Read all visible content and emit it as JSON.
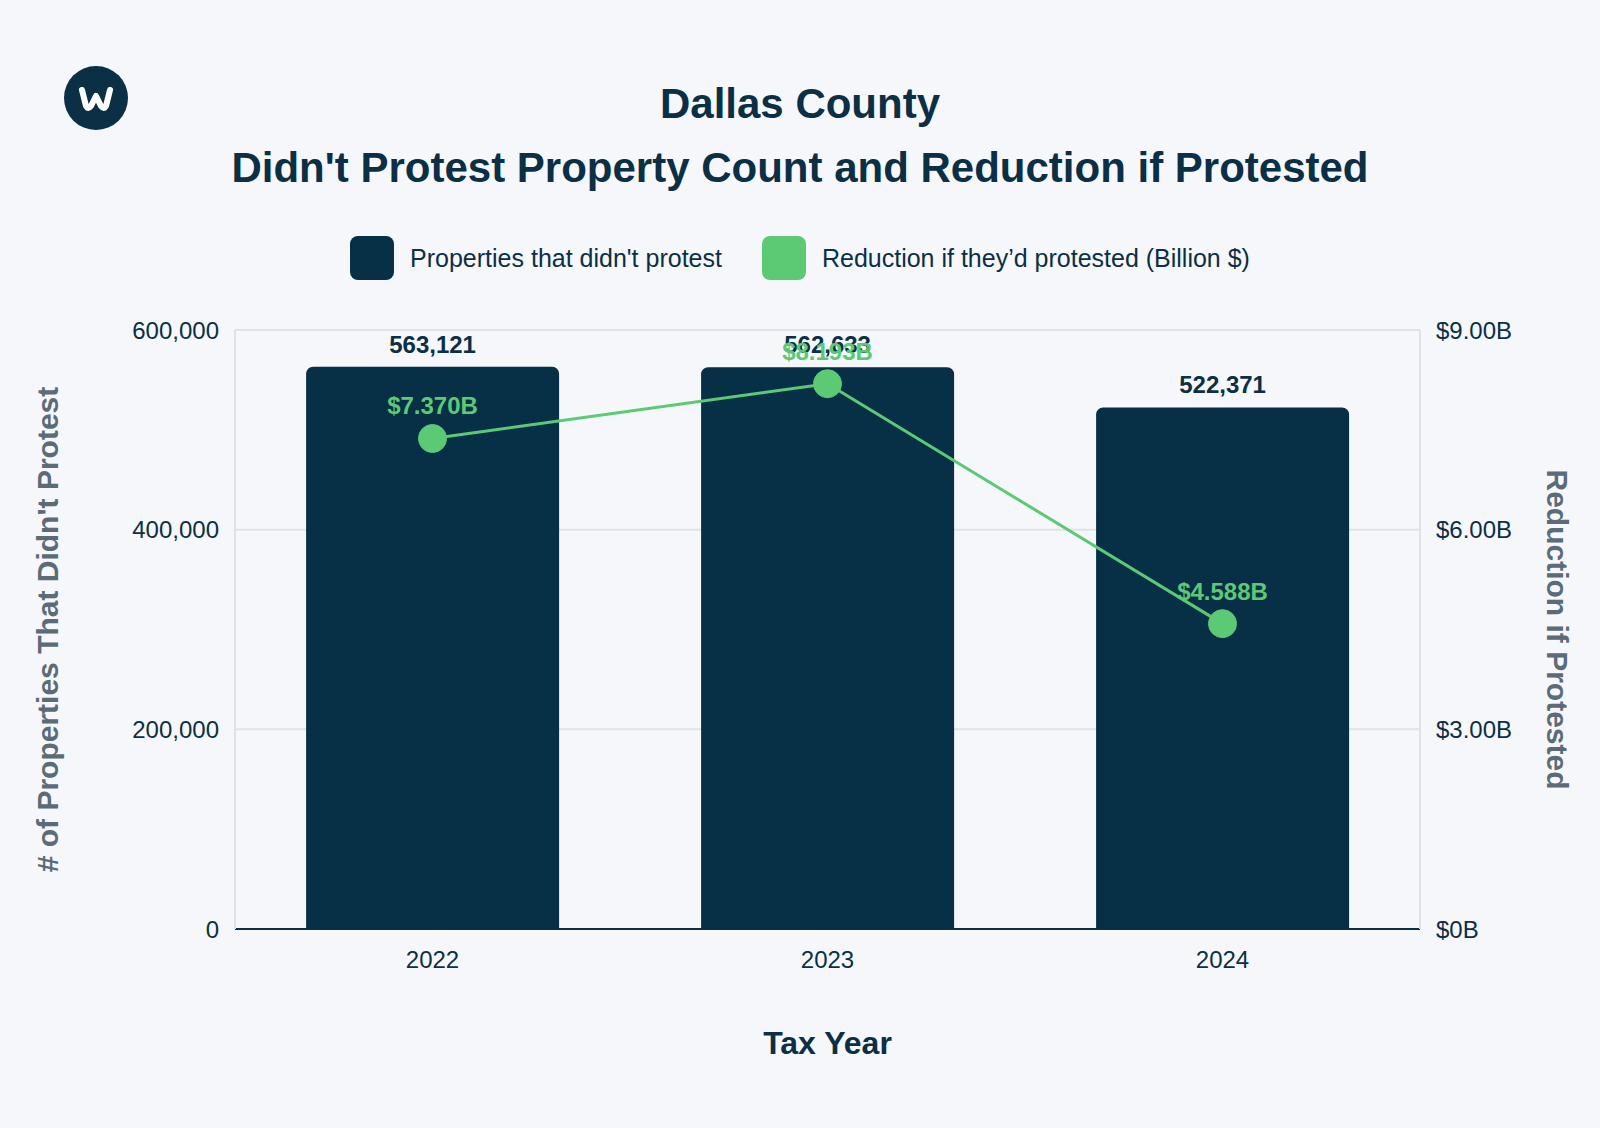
{
  "chart_data": {
    "type": "bar",
    "title": "Dallas County",
    "subtitle": "Didn't Protest Property Count and Reduction if Protested",
    "x_label": "Tax Year",
    "y_label": "# of Properties That Didn't Protest",
    "y2_label": "Reduction if Protested",
    "categories": [
      "2022",
      "2023",
      "2024"
    ],
    "series": [
      {
        "name": "Properties that didn't protest",
        "type": "bar",
        "color": "#072f46",
        "values": [
          563121,
          562633,
          522371
        ],
        "value_labels": [
          "563,121",
          "562,633",
          "522,371"
        ]
      },
      {
        "name": "Reduction if they’d protested (Billion $)",
        "type": "line",
        "axis": "y2",
        "color": "#5cc975",
        "marker": "circle",
        "values": [
          7.37,
          8.193,
          4.588
        ],
        "value_labels": [
          "$7.370B",
          "$8.193B",
          "$4.588B"
        ]
      }
    ],
    "ylim": [
      0,
      600000
    ],
    "yticks": [
      0,
      {
        "value": 200000,
        "label": "200,000"
      },
      {
        "value": 400000,
        "label": "400,000"
      },
      {
        "value": 600000,
        "label": "600,000"
      }
    ],
    "y2lim": [
      0,
      9
    ],
    "y2ticks": [
      {
        "value": 0,
        "label": "$0B"
      },
      {
        "value": 3,
        "label": "$3.00B"
      },
      {
        "value": 6,
        "label": "$6.00B"
      },
      {
        "value": 9,
        "label": "$9.00B"
      }
    ],
    "grid": true,
    "data_labels": true
  }
}
